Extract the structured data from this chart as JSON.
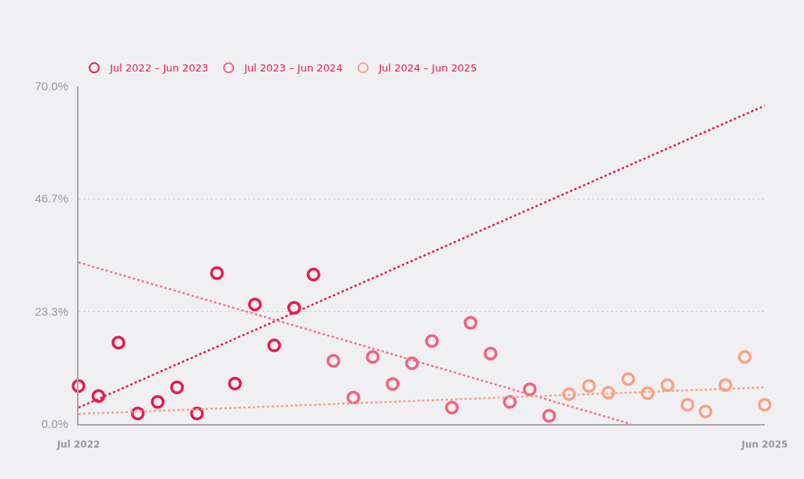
{
  "chart_data": {
    "type": "scatter",
    "xlim": [
      "2022-07",
      "2025-06"
    ],
    "xticks": [
      {
        "value": "2022-07",
        "label": "Jul 2022"
      },
      {
        "value": "2025-06",
        "label": "Jun 2025"
      }
    ],
    "ylim": [
      0,
      70
    ],
    "yticks": [
      {
        "value": 0,
        "label": "0.0%"
      },
      {
        "value": 23.3,
        "label": "23.3%"
      },
      {
        "value": 46.7,
        "label": "46.7%"
      },
      {
        "value": 70,
        "label": "70.0%"
      }
    ],
    "grid": "y",
    "legend": "top left",
    "marker": "circle",
    "series": [
      {
        "name": "Jul 2022 – Jun 2023",
        "color": "#e8194f",
        "x": [
          "2022-07",
          "2022-08",
          "2022-09",
          "2022-10",
          "2022-11",
          "2022-12",
          "2023-01",
          "2023-02",
          "2023-03",
          "2023-04",
          "2023-05",
          "2023-06",
          "2023-07"
        ],
        "values": [
          7.9,
          5.8,
          16.9,
          2.2,
          4.6,
          7.6,
          2.2,
          31.3,
          8.4,
          24.8,
          16.3,
          24.1,
          31.0
        ]
      },
      {
        "name": "Jul 2023 – Jun 2024",
        "color": "#f4607e",
        "x": [
          "2023-08",
          "2023-09",
          "2023-10",
          "2023-11",
          "2023-12",
          "2024-01",
          "2024-02",
          "2024-03",
          "2024-04",
          "2024-05",
          "2024-06",
          "2024-07"
        ],
        "values": [
          13.1,
          5.5,
          13.9,
          8.3,
          12.6,
          17.2,
          3.4,
          21.0,
          14.6,
          4.6,
          7.2,
          1.7
        ]
      },
      {
        "name": "Jul 2024 – Jun 2025",
        "color": "#f9a184",
        "x": [
          "2024-08",
          "2024-09",
          "2024-10",
          "2024-11",
          "2024-12",
          "2025-01",
          "2025-02",
          "2025-03",
          "2025-04",
          "2025-05",
          "2025-06"
        ],
        "values": [
          6.2,
          7.9,
          6.5,
          9.3,
          6.4,
          8.1,
          4.0,
          2.6,
          8.1,
          13.9,
          4.0
        ]
      },
      {
        "type": "line",
        "color": "#e8194f",
        "line_style": "dotted",
        "marker": "none",
        "x": [
          "2022-07",
          "2025-06"
        ],
        "values": [
          3.4,
          66.0
        ]
      },
      {
        "type": "line",
        "color": "#f4738e",
        "line_style": "dotted",
        "marker": "none",
        "x": [
          "2022-07",
          "2024-11-05"
        ],
        "values": [
          33.5,
          0
        ]
      },
      {
        "type": "line",
        "color": "#f9a184",
        "line_style": "dotted",
        "marker": "none",
        "x": [
          "2022-07",
          "2025-06"
        ],
        "values": [
          2.1,
          7.6
        ]
      }
    ]
  }
}
